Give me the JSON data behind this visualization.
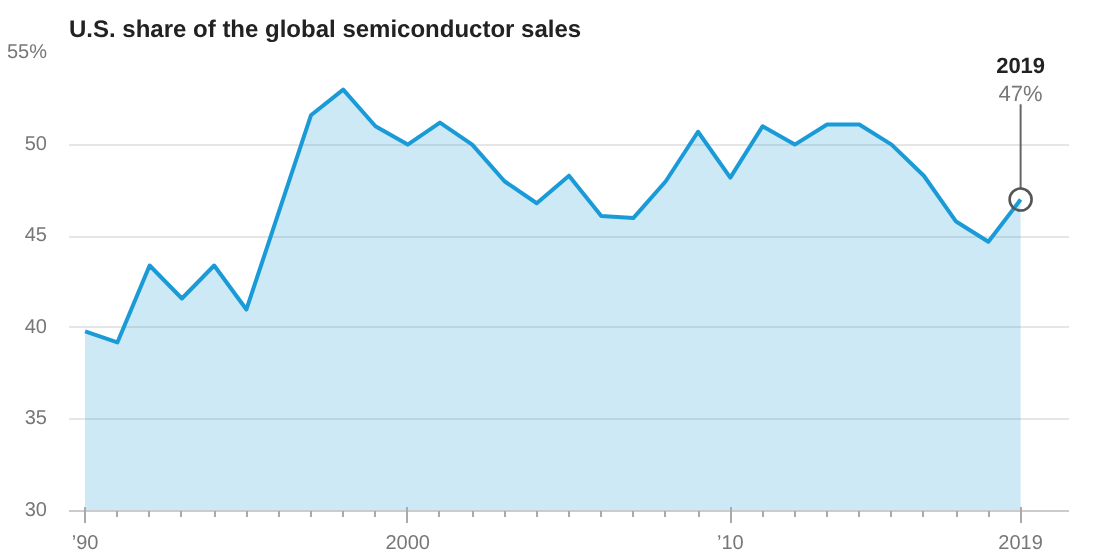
{
  "chart_data": {
    "type": "area",
    "title": "U.S. share of the global semiconductor sales",
    "x": [
      1990,
      1991,
      1992,
      1993,
      1994,
      1995,
      1996,
      1997,
      1998,
      1999,
      2000,
      2001,
      2002,
      2003,
      2004,
      2005,
      2006,
      2007,
      2008,
      2009,
      2010,
      2011,
      2012,
      2013,
      2014,
      2015,
      2016,
      2017,
      2018,
      2019
    ],
    "series": [
      {
        "color": "#1a9bd7",
        "values": [
          39.8,
          39.2,
          43.4,
          41.6,
          43.4,
          41.0,
          46.3,
          51.6,
          53.0,
          51.0,
          50.0,
          51.2,
          50.0,
          48.0,
          46.8,
          48.3,
          46.1,
          46.0,
          48.0,
          50.7,
          48.2,
          51.0,
          50.0,
          51.1,
          51.1,
          50.0,
          48.3,
          45.8,
          44.7,
          47
        ]
      }
    ],
    "xlim": [
      1989.5,
      2020.5
    ],
    "xticks": [
      {
        "value": 1990,
        "label": "’90"
      },
      2000,
      {
        "value": 2010,
        "label": "’10"
      },
      2019
    ],
    "ylim": [
      30,
      55
    ],
    "yticks": [
      30,
      35,
      40,
      45,
      50,
      {
        "value": 55,
        "label": "55%"
      }
    ],
    "grid": "y",
    "annotations": [
      {
        "text": "2019",
        "x": 2019,
        "y": 47
      },
      {
        "text": "47%",
        "x": 2019,
        "y": 47
      }
    ]
  }
}
